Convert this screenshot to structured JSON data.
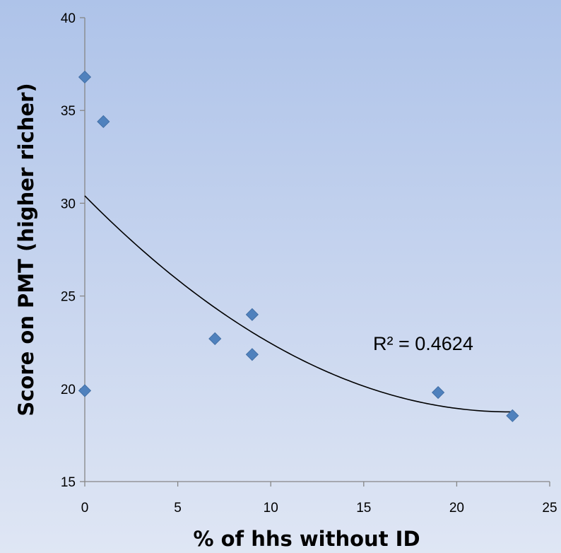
{
  "chart_data": {
    "type": "scatter",
    "title": "",
    "xlabel": "% of hhs without ID",
    "ylabel": "Score on PMT (higher richer)",
    "xlim": [
      0,
      25
    ],
    "ylim": [
      15,
      40
    ],
    "xticks": [
      0,
      5,
      10,
      15,
      20,
      25
    ],
    "yticks": [
      15,
      20,
      25,
      30,
      35,
      40
    ],
    "grid": false,
    "legend": "none",
    "series": [
      {
        "marker": "diamond",
        "color": "#4f81bd",
        "points": [
          {
            "x": 0,
            "y": 36.8
          },
          {
            "x": 1,
            "y": 34.4
          },
          {
            "x": 0,
            "y": 19.9
          },
          {
            "x": 7,
            "y": 22.7
          },
          {
            "x": 9,
            "y": 24.0
          },
          {
            "x": 9,
            "y": 21.85
          },
          {
            "x": 19,
            "y": 19.8
          },
          {
            "x": 23,
            "y": 18.55
          }
        ]
      }
    ],
    "trendline": {
      "type": "polynomial",
      "order": 2,
      "color": "#000000",
      "x_range": [
        0,
        23
      ],
      "coefficients": {
        "a": 0.0222,
        "b": -1.0169,
        "c": 30.4
      }
    },
    "annotations": [
      {
        "text": "R² = 0.4624"
      }
    ]
  }
}
